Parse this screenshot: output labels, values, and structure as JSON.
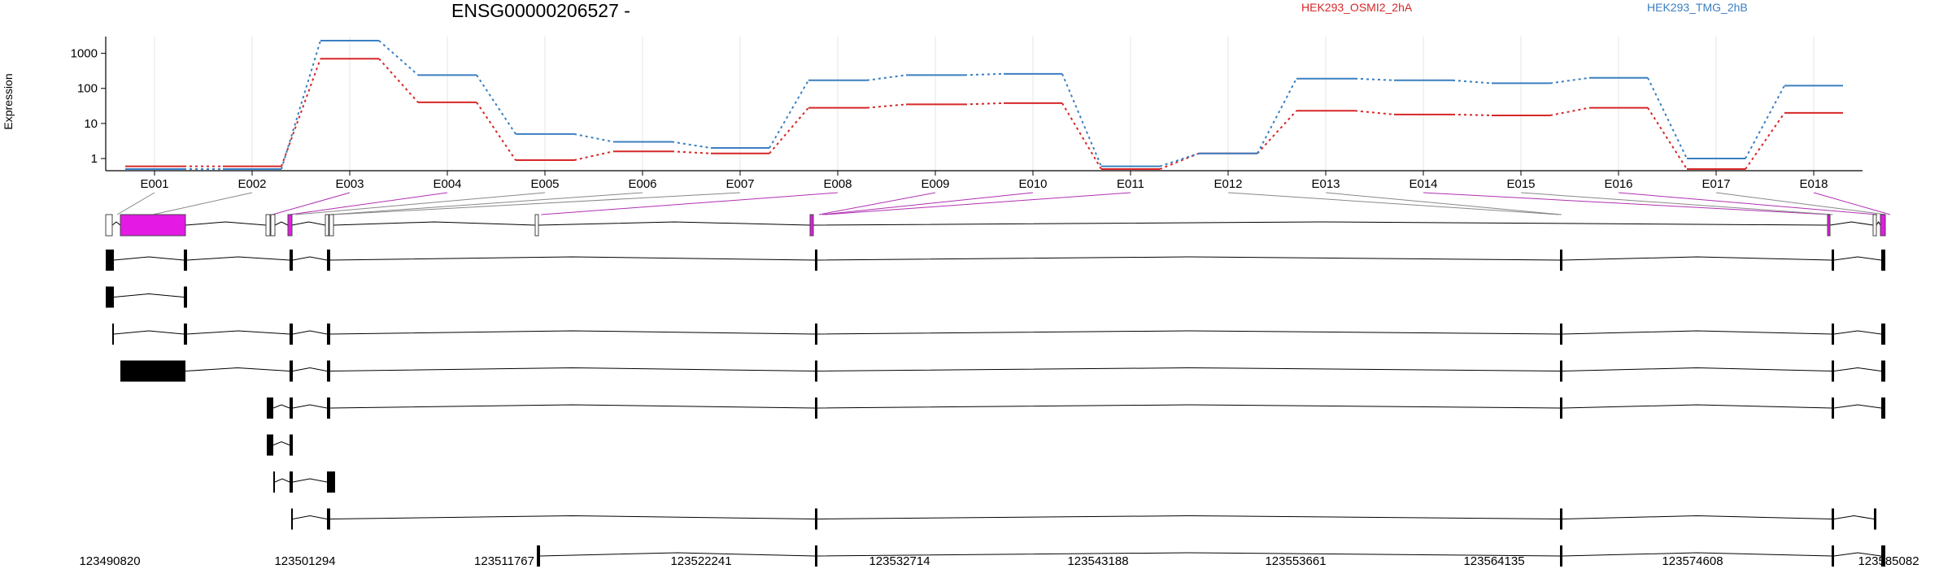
{
  "chart_data": {
    "type": "line",
    "title": "ENSG00000206527 -",
    "ylabel": "Expression",
    "yscale": "log",
    "ylim": [
      0.45,
      3000
    ],
    "yticks": [
      1,
      10,
      100,
      1000
    ],
    "ytick_labels": [
      "1",
      "10",
      "100",
      "1000"
    ],
    "grid": true,
    "legend_position": "top",
    "categories": [
      "E001",
      "E002",
      "E003",
      "E004",
      "E005",
      "E006",
      "E007",
      "E008",
      "E009",
      "E010",
      "E011",
      "E012",
      "E013",
      "E014",
      "E015",
      "E016",
      "E017",
      "E018"
    ],
    "series": [
      {
        "name": "HEK293_OSMI2_2hA",
        "color": "#d62728",
        "values": [
          0.6,
          0.6,
          700,
          40,
          0.9,
          1.6,
          1.4,
          28,
          35,
          38,
          0.5,
          1.4,
          23,
          18,
          17,
          28,
          0.5,
          20
        ]
      },
      {
        "name": "HEK293_TMG_2hB",
        "color": "#3a7fc1",
        "values": [
          0.5,
          0.5,
          2300,
          240,
          5,
          3,
          2,
          170,
          240,
          260,
          0.6,
          1.4,
          190,
          170,
          140,
          200,
          1.0,
          120
        ]
      }
    ],
    "genomic_axis": {
      "tick_labels": [
        "123490820",
        "123501294",
        "123511767",
        "123522241",
        "123532714",
        "123543188",
        "123553661",
        "123564135",
        "123574608",
        "123585082"
      ]
    }
  }
}
